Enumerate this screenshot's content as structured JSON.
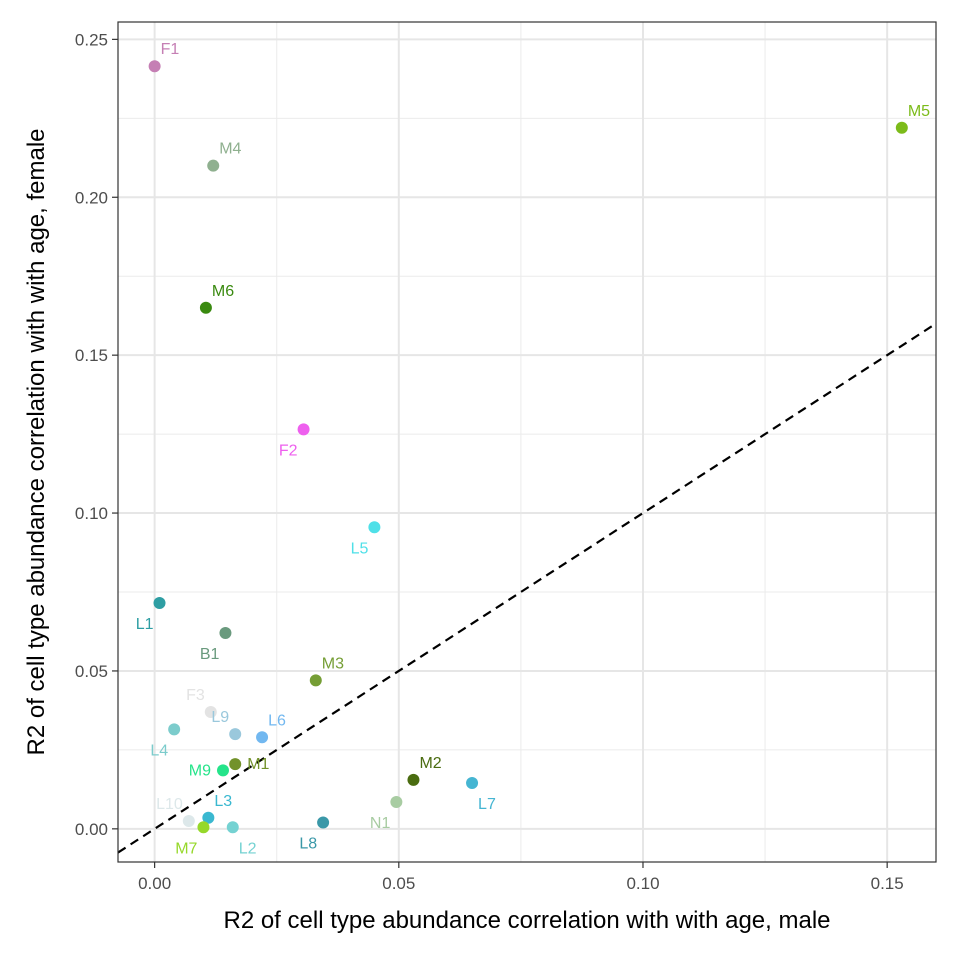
{
  "chart_data": {
    "type": "scatter",
    "xlabel": "R2 of cell type abundance correlation with with age, male",
    "ylabel": "R2 of cell type abundance correlation with with age, female",
    "xlim": [
      -0.0075,
      0.16
    ],
    "ylim": [
      -0.0105,
      0.2555
    ],
    "x_ticks": [
      0.0,
      0.05,
      0.1,
      0.15
    ],
    "x_tick_labels": [
      "0.00",
      "0.05",
      "0.10",
      "0.15"
    ],
    "y_ticks": [
      0.0,
      0.05,
      0.1,
      0.15,
      0.2,
      0.25
    ],
    "y_tick_labels": [
      "0.00",
      "0.05",
      "0.10",
      "0.15",
      "0.20",
      "0.25"
    ],
    "grid": true,
    "reference_line": {
      "type": "identity",
      "style": "dashed",
      "slope": 1,
      "intercept": 0
    },
    "points": [
      {
        "label": "F1",
        "x": 0.0,
        "y": 0.2415,
        "color": "#c57fb4",
        "label_pos": "above-right"
      },
      {
        "label": "M4",
        "x": 0.012,
        "y": 0.21,
        "color": "#8fb08f",
        "label_pos": "above-right"
      },
      {
        "label": "M5",
        "x": 0.153,
        "y": 0.222,
        "color": "#7cbb1a",
        "label_pos": "above-right"
      },
      {
        "label": "M6",
        "x": 0.0105,
        "y": 0.165,
        "color": "#3a8a10",
        "label_pos": "above-right"
      },
      {
        "label": "F2",
        "x": 0.0305,
        "y": 0.1265,
        "color": "#ee60ee",
        "label_pos": "below-left"
      },
      {
        "label": "L5",
        "x": 0.045,
        "y": 0.0955,
        "color": "#4fe0e8",
        "label_pos": "below-left"
      },
      {
        "label": "L1",
        "x": 0.001,
        "y": 0.0715,
        "color": "#2e9ea3",
        "label_pos": "below-left"
      },
      {
        "label": "B1",
        "x": 0.0145,
        "y": 0.062,
        "color": "#6a9a7e",
        "label_pos": "below-left"
      },
      {
        "label": "M3",
        "x": 0.033,
        "y": 0.047,
        "color": "#759e35",
        "label_pos": "above-right"
      },
      {
        "label": "F3",
        "x": 0.0115,
        "y": 0.037,
        "color": "#e3e3e3",
        "label_pos": "above-left"
      },
      {
        "label": "L4",
        "x": 0.004,
        "y": 0.0315,
        "color": "#7ccccc",
        "label_pos": "below-left"
      },
      {
        "label": "L9",
        "x": 0.0165,
        "y": 0.03,
        "color": "#9ac8dc",
        "label_pos": "above-left"
      },
      {
        "label": "L6",
        "x": 0.022,
        "y": 0.029,
        "color": "#72b8f0",
        "label_pos": "above-right"
      },
      {
        "label": "M9",
        "x": 0.014,
        "y": 0.0185,
        "color": "#25e48a",
        "label_pos": "left"
      },
      {
        "label": "M1",
        "x": 0.0165,
        "y": 0.0205,
        "color": "#72922a",
        "label_pos": "right"
      },
      {
        "label": "M2",
        "x": 0.053,
        "y": 0.0155,
        "color": "#4a6c10",
        "label_pos": "above-right"
      },
      {
        "label": "L7",
        "x": 0.065,
        "y": 0.0145,
        "color": "#45b5d2",
        "label_pos": "below-right"
      },
      {
        "label": "N1",
        "x": 0.0495,
        "y": 0.0085,
        "color": "#a8cca2",
        "label_pos": "below-left"
      },
      {
        "label": "L3",
        "x": 0.011,
        "y": 0.0035,
        "color": "#3ab8d0",
        "label_pos": "above-right"
      },
      {
        "label": "L10",
        "x": 0.007,
        "y": 0.0025,
        "color": "#dde8ea",
        "label_pos": "above-left"
      },
      {
        "label": "L8",
        "x": 0.0345,
        "y": 0.002,
        "color": "#3a98a8",
        "label_pos": "below-left"
      },
      {
        "label": "M7",
        "x": 0.01,
        "y": 0.0005,
        "color": "#96d82a",
        "label_pos": "below-left"
      },
      {
        "label": "L2",
        "x": 0.016,
        "y": 0.0005,
        "color": "#75d2d2",
        "label_pos": "below-right"
      }
    ]
  }
}
